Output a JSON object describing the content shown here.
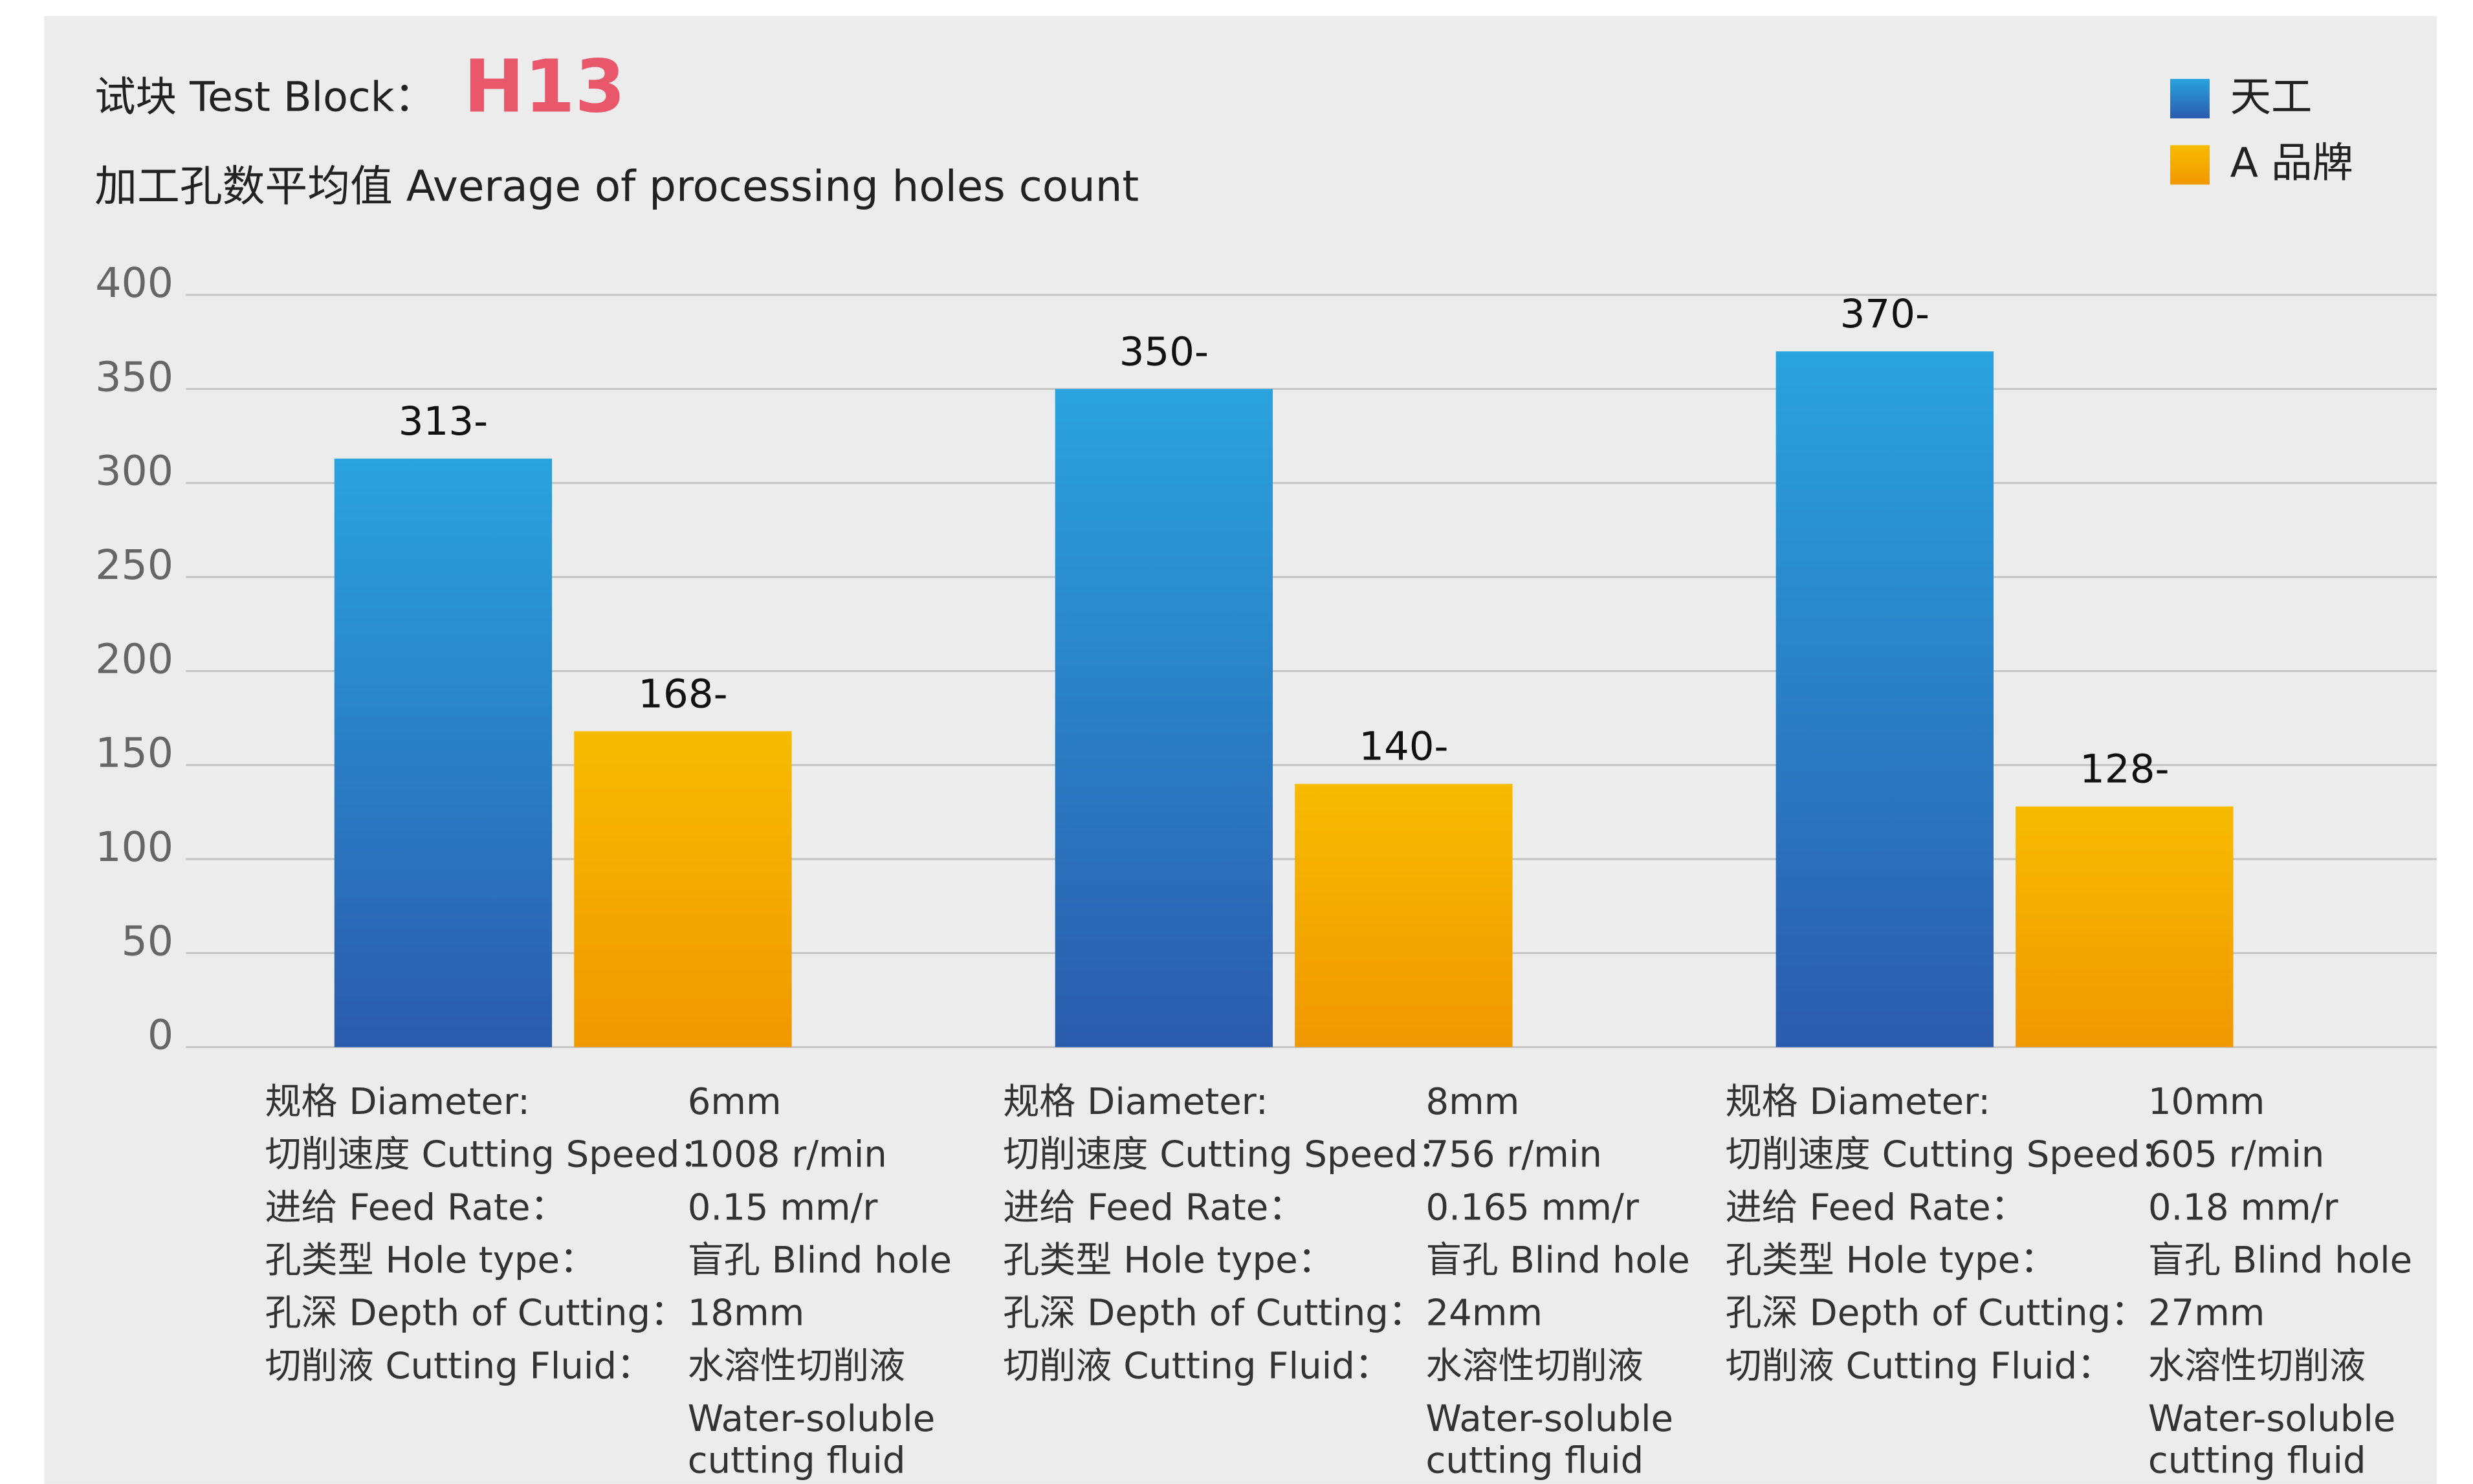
{
  "chart_data": {
    "type": "bar",
    "title": "试块 Test Block：",
    "title_highlight": "H13",
    "subtitle": "加工孔数平均值 Average of processing holes count",
    "categories": [
      null,
      null,
      null
    ],
    "series": [
      {
        "name": "天工",
        "color": "#2a9fdc",
        "gradient": [
          "#2aa3de",
          "#2b5bad"
        ],
        "values": [
          313,
          350,
          370
        ],
        "value_labels": [
          "313-",
          "350-",
          "370-"
        ]
      },
      {
        "name": "A 品牌",
        "color": "#f5ad00",
        "gradient": [
          "#f7bb00",
          "#f09800"
        ],
        "values": [
          168,
          140,
          128
        ],
        "value_labels": [
          "168-",
          "140-",
          "128-"
        ]
      }
    ],
    "ylim": [
      0,
      400
    ],
    "yticks": [
      0,
      50,
      100,
      150,
      200,
      250,
      300,
      350,
      400
    ],
    "grid": true,
    "legend": "top-right",
    "specs": [
      [
        {
          "label": "规格 Diameter:",
          "value": [
            "6mm"
          ]
        },
        {
          "label": "切削速度 Cutting Speed：",
          "value": [
            "1008 r/min"
          ]
        },
        {
          "label": "进给 Feed Rate：",
          "value": [
            "0.15 mm/r"
          ]
        },
        {
          "label": "孔类型 Hole type：",
          "value": [
            "盲孔 Blind hole"
          ]
        },
        {
          "label": "孔深 Depth of Cutting：",
          "value": [
            "18mm"
          ]
        },
        {
          "label": "切削液 Cutting Fluid：",
          "value": [
            "水溶性切削液",
            "Water-soluble",
            "cutting fluid"
          ]
        }
      ],
      [
        {
          "label": "规格 Diameter:",
          "value": [
            "8mm"
          ]
        },
        {
          "label": "切削速度 Cutting Speed：",
          "value": [
            "756 r/min"
          ]
        },
        {
          "label": "进给 Feed Rate：",
          "value": [
            "0.165 mm/r"
          ]
        },
        {
          "label": "孔类型 Hole type：",
          "value": [
            "盲孔 Blind hole"
          ]
        },
        {
          "label": "孔深 Depth of Cutting：",
          "value": [
            "24mm"
          ]
        },
        {
          "label": "切削液 Cutting Fluid：",
          "value": [
            "水溶性切削液",
            "Water-soluble",
            "cutting fluid"
          ]
        }
      ],
      [
        {
          "label": "规格 Diameter:",
          "value": [
            "10mm"
          ]
        },
        {
          "label": "切削速度 Cutting Speed：",
          "value": [
            "605 r/min"
          ]
        },
        {
          "label": "进给 Feed Rate：",
          "value": [
            "0.18 mm/r"
          ]
        },
        {
          "label": "孔类型 Hole type：",
          "value": [
            "盲孔 Blind hole"
          ]
        },
        {
          "label": "孔深 Depth of Cutting：",
          "value": [
            "27mm"
          ]
        },
        {
          "label": "切削液 Cutting Fluid：",
          "value": [
            "水溶性切削液",
            "Water-soluble",
            "cutting fluid"
          ]
        }
      ]
    ]
  }
}
